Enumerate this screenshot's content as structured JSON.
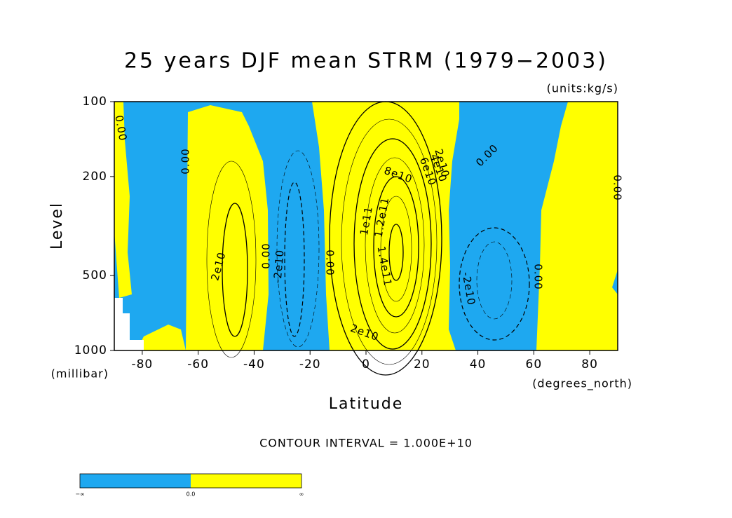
{
  "chart_data": {
    "type": "contour",
    "title": "25 years DJF mean STRM (1979−2003)",
    "units": "(units:kg/s)",
    "xlabel": "Latitude",
    "ylabel": "Level",
    "x_units": "(degrees_north)",
    "y_units": "(millibar)",
    "xlim": [
      -90,
      90
    ],
    "xticks": [
      -80,
      -60,
      -40,
      -20,
      0,
      20,
      40,
      60,
      80
    ],
    "ylim": [
      1000,
      100
    ],
    "yticks": [
      100,
      200,
      500,
      1000
    ],
    "y_scale": "log",
    "contour_interval": "CONTOUR INTERVAL = 1.000E+10",
    "negative_color": "#1ea8f0",
    "positive_color": "#ffff00",
    "contour_labels": [
      {
        "value": 0,
        "label": "0.00"
      },
      {
        "value": 0,
        "label": "0.00"
      },
      {
        "value": 20000000000,
        "label": "2e10"
      },
      {
        "value": 0,
        "label": "0.00"
      },
      {
        "value": -20000000000,
        "label": "-2e10"
      },
      {
        "value": 0,
        "label": "0.00"
      },
      {
        "value": 20000000000,
        "label": "2e10"
      },
      {
        "value": 100000000000,
        "label": "1e11"
      },
      {
        "value": 120000000000,
        "label": "1.2e11"
      },
      {
        "value": 140000000000,
        "label": "1.4e11"
      },
      {
        "value": 80000000000,
        "label": "8e10"
      },
      {
        "value": 60000000000,
        "label": "6e10"
      },
      {
        "value": 40000000000,
        "label": "4e10"
      },
      {
        "value": 20000000000,
        "label": "2e10"
      },
      {
        "value": 0,
        "label": "0.00"
      },
      {
        "value": 0,
        "label": "0.00"
      },
      {
        "value": -20000000000,
        "label": "-2e10"
      },
      {
        "value": 0,
        "label": "0.00"
      }
    ],
    "colorbar": {
      "labels": [
        "−∞",
        "0.0",
        "∞"
      ]
    }
  }
}
